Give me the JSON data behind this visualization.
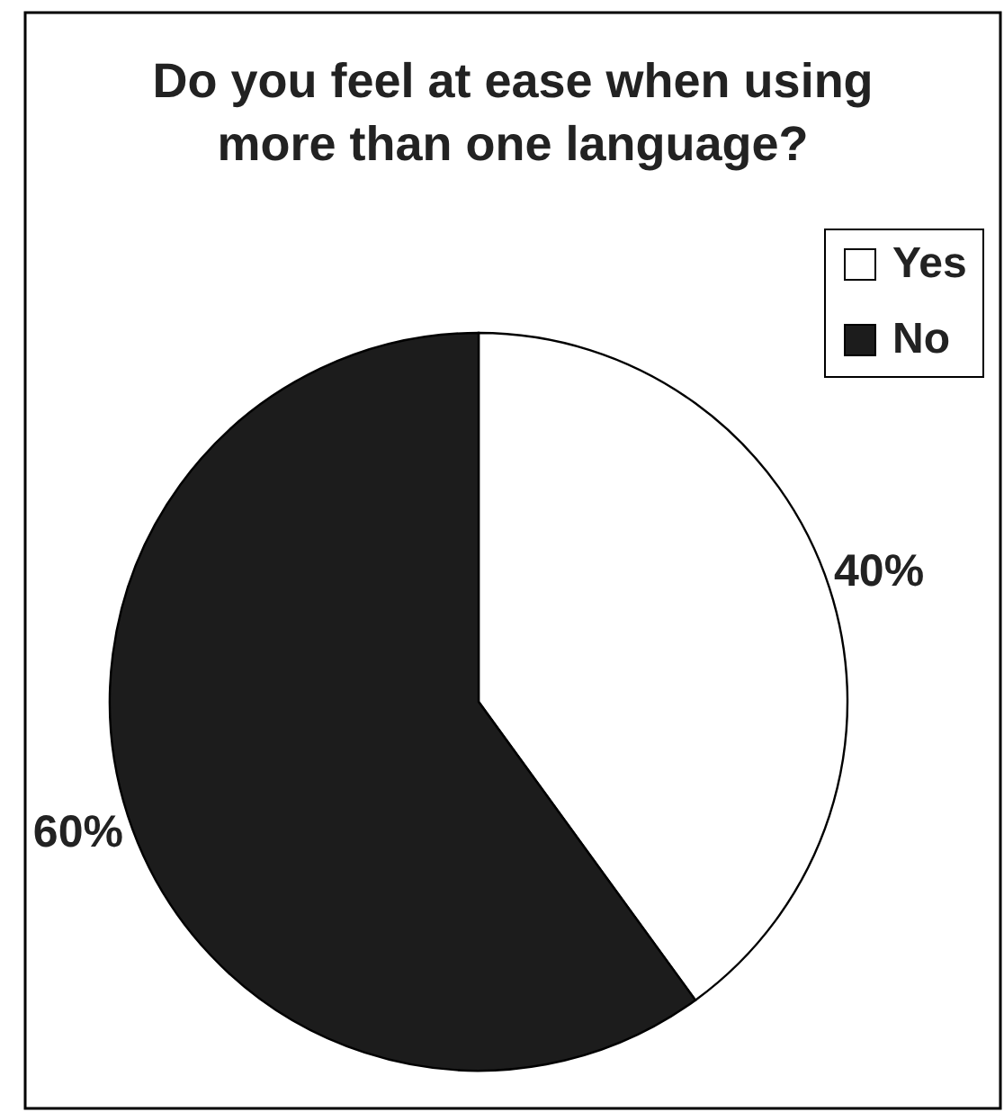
{
  "chart_data": {
    "type": "pie",
    "title": "Do you feel at ease when using\nmore than one language?",
    "categories": [
      "Yes",
      "No"
    ],
    "values": [
      40,
      60
    ],
    "colors": [
      "#ffffff",
      "#1c1c1c"
    ],
    "value_labels": [
      "40%",
      "60%"
    ],
    "legend": "top right"
  }
}
